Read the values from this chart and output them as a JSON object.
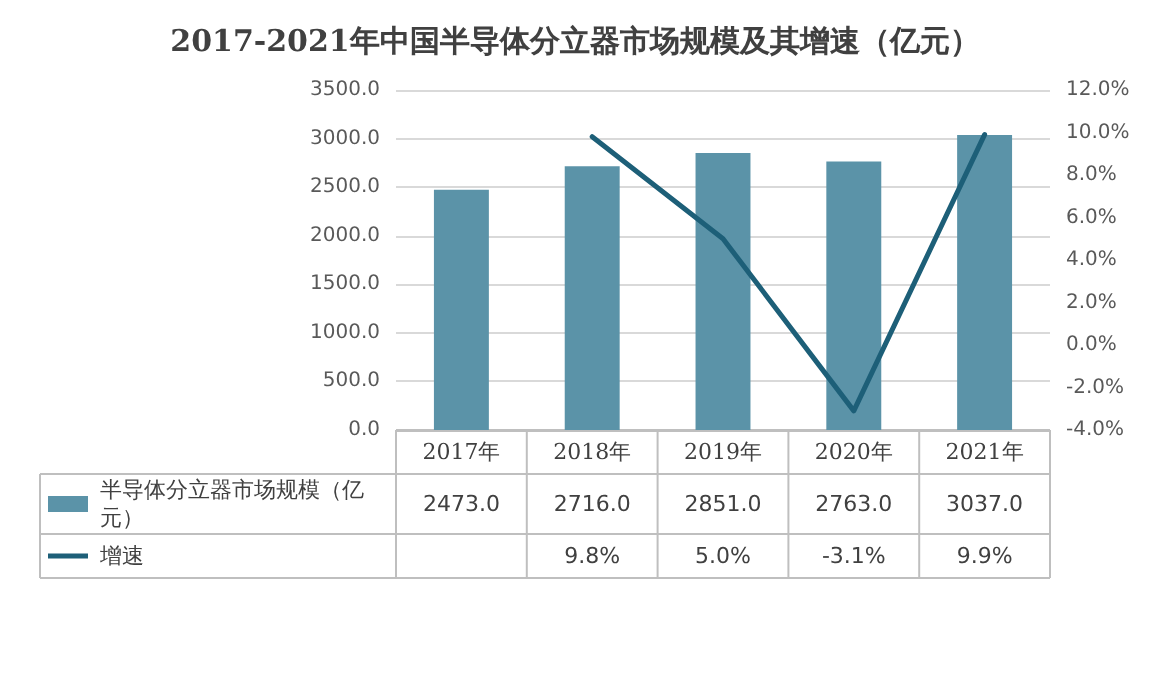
{
  "chart_data": {
    "type": "bar",
    "title": "2017-2021年中国半导体分立器市场规模及其增速（亿元）",
    "categories": [
      "2017年",
      "2018年",
      "2019年",
      "2020年",
      "2021年"
    ],
    "series": [
      {
        "name": "半导体分立器市场规模（亿元）",
        "color": "#5b93a8",
        "values": [
          2473.0,
          2716.0,
          2851.0,
          2763.0,
          3037.0
        ],
        "value_labels": [
          "2473.0",
          "2716.0",
          "2851.0",
          "2763.0",
          "3037.0"
        ]
      },
      {
        "name": "增速",
        "type": "line",
        "axis": "y2",
        "color": "#1d5f78",
        "values": [
          null,
          9.8,
          5.0,
          -3.1,
          9.9
        ],
        "value_labels": [
          null,
          "9.8%",
          "5.0%",
          "-3.1%",
          "9.9%"
        ]
      }
    ],
    "ylim": [
      0,
      3500
    ],
    "yticks": [
      {
        "value": 0,
        "label": "0.0"
      },
      {
        "value": 500,
        "label": "500.0"
      },
      {
        "value": 1000,
        "label": "1000.0"
      },
      {
        "value": 1500,
        "label": "1500.0"
      },
      {
        "value": 2000,
        "label": "2000.0"
      },
      {
        "value": 2500,
        "label": "2500.0"
      },
      {
        "value": 3000,
        "label": "3000.0"
      },
      {
        "value": 3500,
        "label": "3500.0"
      }
    ],
    "y2lim": [
      -4,
      12
    ],
    "y2ticks": [
      {
        "value": -4,
        "label": "-4.0%"
      },
      {
        "value": -2,
        "label": "-2.0%"
      },
      {
        "value": 0,
        "label": "0.0%"
      },
      {
        "value": 2,
        "label": "2.0%"
      },
      {
        "value": 4,
        "label": "4.0%"
      },
      {
        "value": 6,
        "label": "6.0%"
      },
      {
        "value": 8,
        "label": "8.0%"
      },
      {
        "value": 10,
        "label": "10.0%"
      },
      {
        "value": 12,
        "label": "12.0%"
      }
    ],
    "grid": "y",
    "legend": "bottom",
    "marker": "none",
    "line_style": "solid"
  }
}
